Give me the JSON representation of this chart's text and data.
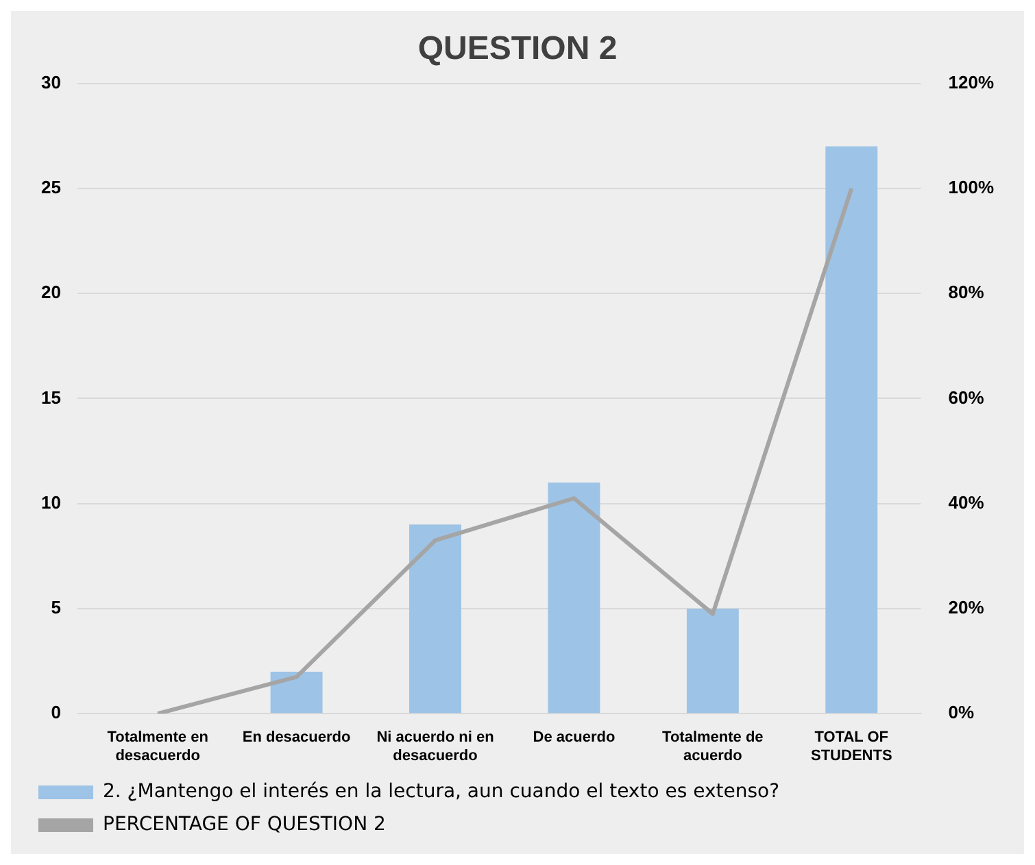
{
  "chart_data": {
    "type": "bar",
    "title": "QUESTION 2",
    "categories": [
      "Totalmente en desacuerdo",
      "En desacuerdo",
      "Ni acuerdo ni en desacuerdo",
      "De acuerdo",
      "Totalmente de acuerdo",
      "TOTAL OF STUDENTS"
    ],
    "series": [
      {
        "name": "2. ¿Mantengo el interés en la lectura, aun cuando el texto es extenso?",
        "color": "#9dc3e6",
        "values": [
          0,
          2,
          9,
          11,
          5,
          27
        ]
      },
      {
        "name": "PERCENTAGE OF QUESTION 2",
        "type": "line",
        "axis": "y2",
        "color": "#a5a5a5",
        "values": [
          0,
          7,
          33,
          41,
          19,
          100
        ]
      }
    ],
    "ylim": [
      0,
      30
    ],
    "yticks": [
      0,
      5,
      10,
      15,
      20,
      25,
      30
    ],
    "y2lim": [
      0,
      120
    ],
    "y2ticks": [
      {
        "value": 0,
        "label": "0%"
      },
      {
        "value": 20,
        "label": "20%"
      },
      {
        "value": 40,
        "label": "40%"
      },
      {
        "value": 60,
        "label": "60%"
      },
      {
        "value": 80,
        "label": "80%"
      },
      {
        "value": 100,
        "label": "100%"
      },
      {
        "value": 120,
        "label": "120%"
      }
    ],
    "grid": "y",
    "legend": "bottom",
    "marker": "none",
    "line_style": "solid"
  }
}
